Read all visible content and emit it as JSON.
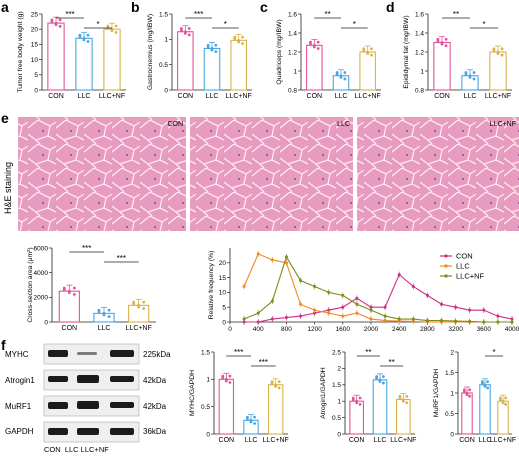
{
  "colors": {
    "con": "#e0559a",
    "llc": "#4aa6e0",
    "nf": "#d9b24a",
    "freq_con": "#cc2f85",
    "freq_llc": "#ef8a22",
    "freq_nf": "#7f8a1c"
  },
  "panels": {
    "a": "a",
    "b": "b",
    "c": "c",
    "d": "d",
    "e": "e",
    "f": "f"
  },
  "groups": [
    "CON",
    "LLC",
    "LLC+NF"
  ],
  "he": {
    "label": "H&E staining",
    "tiles": [
      "CON",
      "LLC",
      "LLC+NF"
    ]
  },
  "blots": {
    "rows": [
      {
        "name": "MYHC",
        "kda": "225kDa"
      },
      {
        "name": "Atrogin1",
        "kda": "42kDa"
      },
      {
        "name": "MuRF1",
        "kda": "42kDa"
      },
      {
        "name": "GAPDH",
        "kda": "36kDa"
      }
    ],
    "lanes": "CON  LLC LLC+NF"
  },
  "chart_data": [
    {
      "id": "a",
      "type": "bar",
      "ylabel": "Tumor free body weight (g)",
      "categories": [
        "CON",
        "LLC",
        "LLC+NF"
      ],
      "values": [
        22,
        17,
        20
      ],
      "ylim": [
        0,
        25
      ],
      "yticks": [
        0,
        5,
        10,
        15,
        20,
        25
      ],
      "sig": [
        {
          "from": 0,
          "to": 1,
          "label": "***"
        },
        {
          "from": 1,
          "to": 2,
          "label": "*"
        }
      ]
    },
    {
      "id": "b",
      "type": "bar",
      "ylabel": "Gastrocnemius (mg/IBW)",
      "categories": [
        "CON",
        "LLC",
        "LLC+NF"
      ],
      "values": [
        1.15,
        0.82,
        0.98
      ],
      "ylim": [
        0,
        1.5
      ],
      "yticks": [
        0.0,
        0.5,
        1.0,
        1.5
      ],
      "sig": [
        {
          "from": 0,
          "to": 1,
          "label": "***"
        },
        {
          "from": 1,
          "to": 2,
          "label": "*"
        }
      ]
    },
    {
      "id": "c",
      "type": "bar",
      "ylabel": "Quadriceps (mg/IBW)",
      "categories": [
        "CON",
        "LLC",
        "LLC+NF"
      ],
      "values": [
        1.27,
        0.95,
        1.2
      ],
      "ylim": [
        0.8,
        1.6
      ],
      "yticks": [
        0.8,
        1.0,
        1.2,
        1.4,
        1.6
      ],
      "sig": [
        {
          "from": 0,
          "to": 1,
          "label": "**"
        },
        {
          "from": 1,
          "to": 2,
          "label": "*"
        }
      ]
    },
    {
      "id": "d",
      "type": "bar",
      "ylabel": "Epididymal fat (mg/IBW)",
      "categories": [
        "CON",
        "LLC",
        "LLC+NF"
      ],
      "values": [
        1.3,
        0.95,
        1.2
      ],
      "ylim": [
        0.8,
        1.6
      ],
      "yticks": [
        0.8,
        1.0,
        1.2,
        1.4,
        1.6
      ],
      "sig": [
        {
          "from": 0,
          "to": 1,
          "label": "**"
        },
        {
          "from": 1,
          "to": 2,
          "label": "*"
        }
      ]
    },
    {
      "id": "csa",
      "type": "bar",
      "ylabel": "Cross-section area (μm²)",
      "categories": [
        "CON",
        "LLC",
        "LLC+NF"
      ],
      "values": [
        2500,
        700,
        1350
      ],
      "ylim": [
        0,
        6000
      ],
      "yticks": [
        0,
        2000,
        4000,
        6000
      ],
      "sig": [
        {
          "from": 0,
          "to": 1,
          "label": "***"
        },
        {
          "from": 1,
          "to": 2,
          "label": "***"
        }
      ]
    },
    {
      "id": "freq",
      "type": "line",
      "ylabel": "Relative frequency (%)",
      "ylim": [
        0,
        25
      ],
      "yticks": [
        0,
        5,
        10,
        15,
        20
      ],
      "x": [
        200,
        400,
        600,
        800,
        1000,
        1200,
        1400,
        1600,
        1800,
        2000,
        2200,
        2400,
        2600,
        2800,
        3000,
        3200,
        3400,
        3600,
        3800,
        4000
      ],
      "xticks": [
        0,
        400,
        800,
        1200,
        1600,
        2000,
        2400,
        2800,
        3200,
        3600,
        4000
      ],
      "legend": "top-right",
      "series": [
        {
          "name": "CON",
          "color": "#cc2f85",
          "values": [
            0,
            0,
            1,
            1.5,
            2,
            3,
            4,
            5,
            8,
            5,
            5,
            16,
            12,
            9,
            6,
            5,
            4,
            4,
            2,
            1
          ]
        },
        {
          "name": "LLC",
          "color": "#ef8a22",
          "values": [
            12,
            23,
            21,
            20,
            6,
            4,
            3,
            2,
            3,
            1,
            0.5,
            0.3,
            0.2,
            0,
            0,
            0,
            0,
            0,
            0,
            0
          ]
        },
        {
          "name": "LLC+NF",
          "color": "#7f8a1c",
          "values": [
            1,
            3,
            7,
            22,
            14,
            12,
            10,
            9,
            6,
            4,
            2,
            1,
            1,
            0.5,
            0.5,
            0.3,
            0.2,
            0,
            0,
            0
          ]
        }
      ]
    },
    {
      "id": "myhc",
      "type": "bar",
      "ylabel": "MYHC/GAPDH",
      "categories": [
        "CON",
        "LLC",
        "LLC+NF"
      ],
      "values": [
        1.0,
        0.25,
        0.9
      ],
      "ylim": [
        0,
        1.5
      ],
      "yticks": [
        0.0,
        0.5,
        1.0,
        1.5
      ],
      "sig": [
        {
          "from": 0,
          "to": 1,
          "label": "***"
        },
        {
          "from": 1,
          "to": 2,
          "label": "***"
        }
      ]
    },
    {
      "id": "atrogin",
      "type": "bar",
      "ylabel": "Atrogin1/GAPDH",
      "categories": [
        "CON",
        "LLC",
        "LLC+NF"
      ],
      "values": [
        1.0,
        1.65,
        1.05
      ],
      "ylim": [
        0,
        2.5
      ],
      "yticks": [
        0.0,
        0.5,
        1.0,
        1.5,
        2.0,
        2.5
      ],
      "sig": [
        {
          "from": 0,
          "to": 1,
          "label": "**"
        },
        {
          "from": 1,
          "to": 2,
          "label": "**"
        }
      ]
    },
    {
      "id": "murf",
      "type": "bar",
      "ylabel": "MuRF1/GAPDH",
      "categories": [
        "CON",
        "LLC",
        "LLC+NF"
      ],
      "values": [
        1.0,
        1.2,
        0.8
      ],
      "ylim": [
        0,
        2.0
      ],
      "yticks": [
        0.0,
        0.5,
        1.0,
        1.5,
        2.0
      ],
      "sig": [
        {
          "from": 1,
          "to": 2,
          "label": "*"
        }
      ]
    }
  ]
}
